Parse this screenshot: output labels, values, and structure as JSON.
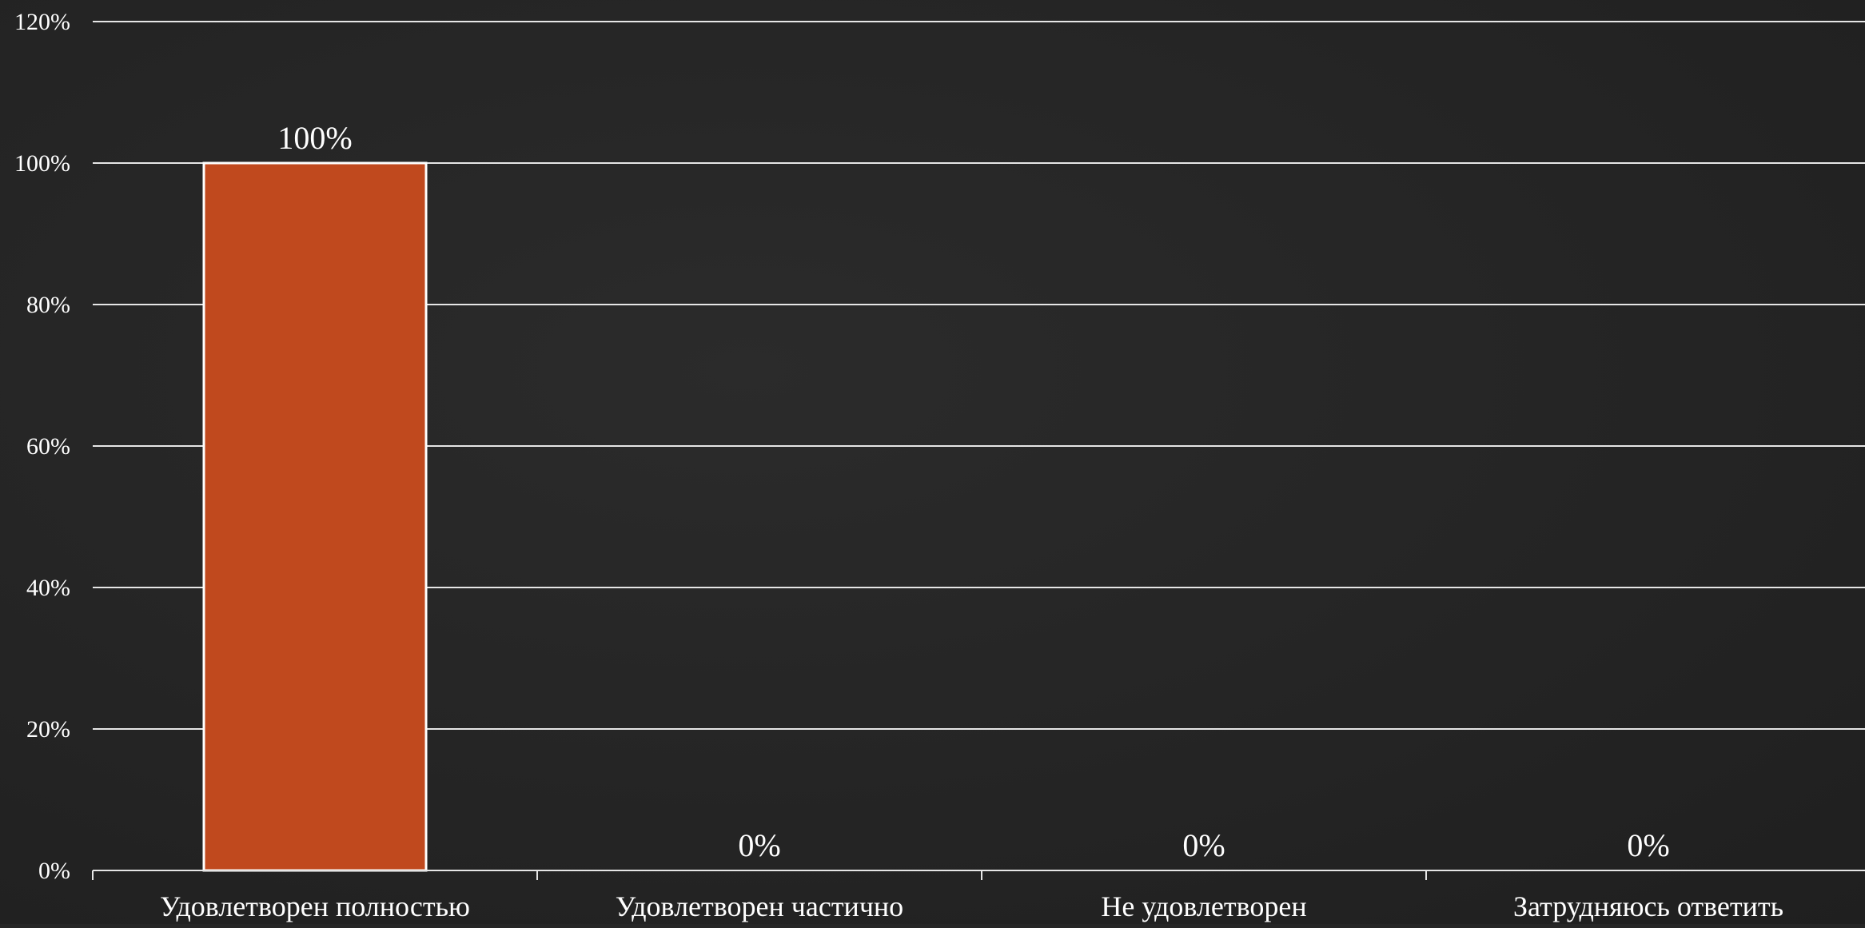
{
  "chart_data": {
    "type": "bar",
    "categories": [
      "Удовлетворен полностью",
      "Удовлетворен частично",
      "Не удовлетворен",
      "Затрудняюсь ответить"
    ],
    "series": [
      {
        "values": [
          100,
          0,
          0,
          0
        ]
      }
    ],
    "data_labels": [
      "100%",
      "0%",
      "0%",
      "0%"
    ],
    "ylim": [
      0,
      120
    ],
    "yticks": [
      0,
      20,
      40,
      60,
      80,
      100,
      120
    ],
    "ytick_labels": [
      "0%",
      "20%",
      "40%",
      "60%",
      "80%",
      "100%",
      "120%"
    ],
    "grid": true,
    "legend": "none",
    "colors": {
      "bar": "#c0491e",
      "text": "#ffffff",
      "grid": "#e6e6e6",
      "background": "#262626"
    }
  }
}
